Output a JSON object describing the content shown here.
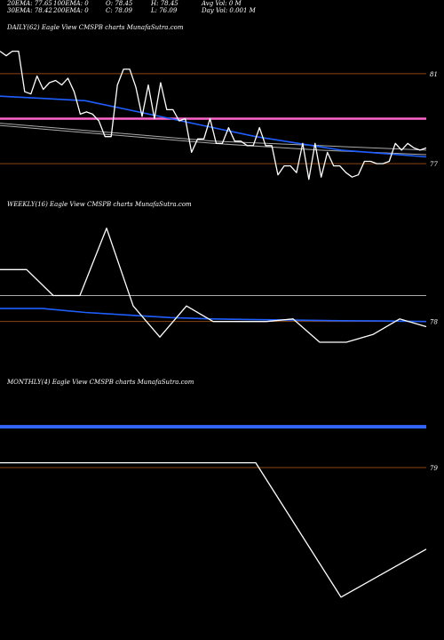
{
  "header": {
    "row1": [
      {
        "text": "20EMA: 77.65"
      },
      {
        "text": "100EMA: 0"
      },
      {
        "text": "O: 78.45"
      },
      {
        "text": "H: 78.45"
      },
      {
        "text": "Avg Vol: 0  M"
      }
    ],
    "row2": [
      {
        "text": "30EMA: 78.42"
      },
      {
        "text": "200EMA: 0"
      },
      {
        "text": "C: 78.09"
      },
      {
        "text": "L: 76.09"
      },
      {
        "text": "Day Vol: 0.001 M"
      }
    ]
  },
  "colors": {
    "background": "#000000",
    "price": "#ffffff",
    "ema_blue": "#1f5fff",
    "ema_grey": "#aaaaaa",
    "level_line": "#8b4513",
    "magenta_line": "#ff66cc",
    "blue_band": "#3366ff"
  },
  "chart_data": [
    {
      "type": "line",
      "title": "DAILY(62) Eagle  View  CMSPB charts MunafaSutra.com",
      "yticks": [
        "81",
        "77"
      ],
      "ylim": [
        75.5,
        82.5
      ],
      "levels": [
        81,
        79,
        77
      ],
      "magenta_level": 79,
      "price": [
        82,
        81.8,
        82,
        82,
        80.2,
        80.1,
        80.9,
        80.3,
        80.6,
        80.7,
        80.5,
        80.8,
        80.2,
        79.2,
        79.3,
        79.2,
        78.9,
        78.2,
        78.2,
        80.5,
        81.2,
        81.2,
        80.4,
        79.1,
        80.5,
        79.0,
        80.6,
        79.4,
        79.4,
        78.9,
        79.0,
        77.5,
        78.1,
        78.1,
        79.0,
        77.9,
        77.9,
        78.6,
        78.0,
        78.0,
        77.8,
        77.8,
        78.6,
        77.8,
        77.8,
        76.5,
        76.9,
        76.9,
        76.6,
        77.9,
        76.3,
        77.9,
        76.4,
        77.5,
        76.9,
        76.9,
        76.6,
        76.4,
        76.5,
        77.1,
        77.1,
        77.0,
        77.0,
        77.1,
        77.9,
        77.6,
        77.9,
        77.7,
        77.6,
        77.7
      ],
      "ema_blue": [
        80.0,
        79.9,
        79.8,
        79.4,
        79.0,
        78.6,
        78.2,
        77.9,
        77.6,
        77.45,
        77.3
      ],
      "ema_grey_1": [
        78.7,
        78.3,
        77.9,
        77.6,
        77.4
      ],
      "ema_grey_2": [
        78.8,
        78.4,
        78.0,
        77.8,
        77.6
      ]
    },
    {
      "type": "line",
      "title": "WEEKLY(16) Eagle  View  CMSPB charts MunafaSutra.com",
      "yticks": [
        "78"
      ],
      "ylim": [
        76,
        82
      ],
      "levels": [
        78
      ],
      "price": [
        80.0,
        80.0,
        79.0,
        79.0,
        81.6,
        78.6,
        77.4,
        78.6,
        78.0,
        78.0,
        78.0,
        78.1,
        77.2,
        77.2,
        77.5,
        78.1,
        77.8
      ],
      "ema_blue": [
        78.5,
        78.5,
        78.35,
        78.25,
        78.15,
        78.1,
        78.07,
        78.05,
        78.03,
        78.02,
        78.0
      ],
      "ema_grey": [
        79.0
      ]
    },
    {
      "type": "line",
      "title": "MONTHLY(4) Eagle  View  CMSPB charts MunafaSutra.com",
      "yticks": [
        "79"
      ],
      "ylim": [
        72,
        82
      ],
      "levels": [
        79
      ],
      "price": [
        79.2,
        79.2,
        79.2,
        79.2,
        73.6,
        75.6
      ],
      "blue_band": [
        80.7
      ]
    }
  ]
}
